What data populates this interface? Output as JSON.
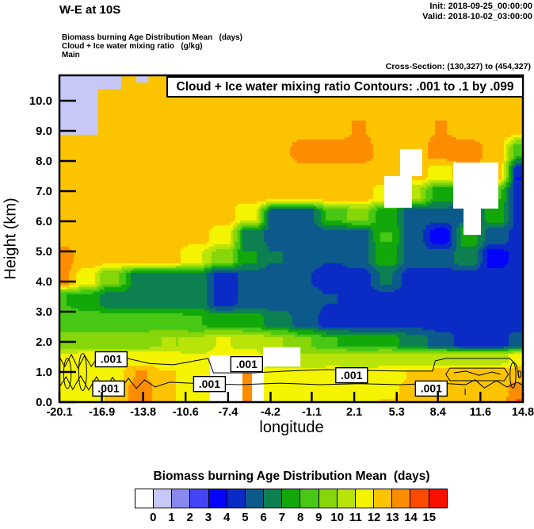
{
  "header": {
    "title": "W-E at 10S",
    "init_label": "Init: 2018-09-25_00:00:00",
    "valid_label": "Valid: 2018-10-02_03:00:00",
    "subtitle1": "Biomass burning Age Distribution Mean   (days)",
    "subtitle2": "Cloud + Ice water mixing ratio   (g/kg)",
    "subtitle3": "Main",
    "cross_section": "Cross-Section: (130,327) to (454,327)"
  },
  "plot": {
    "inner_title": "Cloud + Ice water mixing ratio Contours: .001 to .1 by .099",
    "xlabel": "longitude",
    "ylabel": "Height (km)",
    "x_tick_labels": [
      "-20.1",
      "-16.9",
      "-13.8",
      "-10.6",
      "-7.4",
      "-4.2",
      "-1.1",
      "2.1",
      "5.3",
      "8.4",
      "11.6",
      "14.8"
    ],
    "y_tick_labels": [
      "0.0",
      "1.0",
      "2.0",
      "3.0",
      "4.0",
      "5.0",
      "6.0",
      "7.0",
      "8.0",
      "9.0",
      "10.0"
    ],
    "contour_label": ".001"
  },
  "colorbar": {
    "title": "Biomass burning Age Distribution Mean  (days)",
    "tick_labels": [
      "0",
      "1",
      "2",
      "3",
      "4",
      "5",
      "6",
      "7",
      "8",
      "9",
      "10",
      "11",
      "12",
      "13",
      "14",
      "15"
    ],
    "colors": [
      "#ffffff",
      "#c8c8f8",
      "#8888ee",
      "#4444f4",
      "#0404fc",
      "#0a2cc4",
      "#0c5a8c",
      "#0c8050",
      "#12a80a",
      "#48c814",
      "#86d60a",
      "#b9e409",
      "#f4f400",
      "#fcc400",
      "#fc8c00",
      "#fc4a00",
      "#f81000"
    ]
  },
  "chart_data": {
    "type": "heatmap",
    "title": "Cloud + Ice water mixing ratio Contours: .001 to .1 by .099",
    "xlabel": "longitude",
    "ylabel": "Height (km)",
    "xlim": [
      -20.1,
      14.8
    ],
    "ylim": [
      0,
      10.84
    ],
    "x_ticks": [
      -20.1,
      -16.9,
      -13.8,
      -10.6,
      -7.4,
      -4.2,
      -1.1,
      2.1,
      5.3,
      8.4,
      11.6,
      14.8
    ],
    "y_ticks": [
      0,
      1,
      2,
      3,
      4,
      5,
      6,
      7,
      8,
      9,
      10
    ],
    "fill_variable": "Biomass burning Age Distribution Mean (days)",
    "fill_levels": [
      0,
      1,
      2,
      3,
      4,
      5,
      6,
      7,
      8,
      9,
      10,
      11,
      12,
      13,
      14,
      15
    ],
    "legend_position": "bottom",
    "grid": {
      "lons": [
        -20.1,
        -18.0,
        -16.2,
        -13.9,
        -11.9,
        -9.8,
        -7.8,
        -5.7,
        -3.7,
        -1.6,
        0.4,
        2.5,
        4.5,
        6.6,
        8.6,
        10.7,
        12.7,
        14.8
      ],
      "heights_km": [
        10.8,
        10.0,
        9.1,
        8.3,
        7.6,
        6.9,
        6.2,
        5.5,
        4.8,
        4.1,
        3.4,
        2.7,
        2.0,
        1.45,
        0.9,
        0.45,
        0.0
      ],
      "values_days": [
        [
          13.5,
          13.5,
          13.5,
          13.5,
          13.5,
          13.5,
          13.5,
          13.5,
          13.5,
          13.5,
          13.5,
          13.5,
          13.5,
          13.5,
          13.5,
          13.5,
          13.5,
          13.5
        ],
        [
          13.5,
          13.5,
          13.5,
          13.5,
          13.5,
          13.5,
          13.5,
          13.5,
          13.5,
          13.5,
          13.5,
          13.5,
          13.5,
          13.5,
          13.5,
          13.5,
          13.5,
          13.5
        ],
        [
          13.5,
          13.5,
          13.5,
          13.5,
          13.5,
          13.5,
          13.5,
          13.5,
          13.5,
          13.5,
          13.5,
          14.0,
          13.5,
          13.5,
          14.0,
          13.5,
          13.5,
          13.5
        ],
        [
          13.5,
          13.5,
          13.5,
          13.5,
          13.5,
          13.5,
          13.5,
          13.5,
          13.5,
          14.5,
          14.5,
          14.5,
          13.5,
          13.5,
          14.5,
          14.5,
          13.5,
          9.0
        ],
        [
          13.5,
          13.5,
          13.5,
          13.5,
          13.5,
          13.5,
          13.5,
          13.5,
          13.5,
          13.5,
          13.5,
          13.5,
          13.5,
          13.5,
          12.5,
          14.0,
          13.5,
          5.0
        ],
        [
          13.5,
          13.5,
          13.5,
          13.5,
          13.5,
          13.5,
          13.5,
          13.5,
          13.5,
          13.5,
          13.5,
          13.5,
          12.5,
          11.0,
          8.5,
          8.0,
          9.0,
          5.0
        ],
        [
          13.5,
          13.5,
          13.5,
          13.5,
          13.5,
          13.5,
          13.5,
          12.0,
          6.5,
          6.5,
          9.0,
          10.5,
          8.5,
          6.5,
          6.5,
          6.5,
          8.5,
          5.5
        ],
        [
          13.5,
          13.5,
          13.5,
          13.5,
          13.5,
          13.5,
          12.5,
          7.5,
          6.5,
          6.5,
          6.5,
          6.5,
          9.0,
          6.5,
          4.5,
          8.5,
          6.5,
          5.5
        ],
        [
          14.5,
          13.5,
          13.5,
          13.5,
          13.5,
          12.0,
          10.5,
          8.0,
          7.0,
          6.5,
          6.0,
          6.5,
          8.5,
          6.5,
          6.5,
          7.5,
          4.5,
          5.5
        ],
        [
          14.5,
          12.5,
          10.0,
          7.5,
          7.5,
          7.5,
          5.5,
          6.5,
          6.5,
          6.0,
          5.5,
          5.5,
          7.0,
          5.5,
          5.5,
          5.5,
          5.5,
          5.5
        ],
        [
          9.0,
          8.5,
          7.5,
          7.5,
          7.5,
          7.5,
          5.5,
          6.5,
          6.5,
          6.5,
          6.0,
          5.5,
          5.5,
          5.5,
          5.5,
          5.5,
          5.5,
          5.5
        ],
        [
          9.5,
          9.5,
          9.5,
          9.5,
          9.5,
          9.0,
          8.5,
          8.5,
          7.5,
          6.5,
          5.5,
          5.5,
          5.5,
          5.5,
          5.5,
          5.5,
          5.5,
          5.5
        ],
        [
          10.5,
          10.5,
          10.5,
          10.5,
          11.0,
          11.0,
          12.0,
          11.5,
          11.0,
          10.0,
          9.0,
          8.5,
          8.5,
          7.5,
          6.5,
          5.5,
          5.5,
          6.5
        ],
        [
          12.0,
          12.5,
          12.5,
          12.5,
          12.5,
          12.0,
          12.5,
          12.5,
          11.0,
          11.0,
          11.5,
          11.0,
          11.5,
          11.5,
          11.5,
          11.5,
          11.5,
          12.5
        ],
        [
          12.5,
          12.5,
          12.5,
          14.0,
          13.0,
          12.5,
          12.5,
          12.5,
          12.5,
          12.5,
          12.5,
          12.5,
          12.5,
          13.0,
          13.5,
          13.5,
          13.5,
          13.5
        ],
        [
          12.5,
          12.5,
          13.0,
          14.5,
          13.0,
          12.5,
          12.5,
          12.5,
          12.5,
          12.5,
          12.5,
          12.5,
          12.5,
          13.5,
          13.5,
          13.5,
          13.5,
          14.5
        ],
        [
          12.5,
          12.5,
          13.0,
          14.5,
          13.0,
          12.5,
          12.5,
          12.5,
          12.5,
          12.5,
          12.5,
          12.5,
          13.0,
          13.5,
          13.5,
          13.5,
          13.5,
          15.0
        ]
      ]
    },
    "patches": [
      {
        "name": "age-1-2-day-stratosphere-region",
        "color_index": 1,
        "pts": [
          [
            -20.1,
            10.84
          ],
          [
            -15.45,
            10.84
          ],
          [
            -15.45,
            10.39
          ],
          [
            -17.2,
            10.39
          ],
          [
            -17.2,
            8.87
          ],
          [
            -20.1,
            8.87
          ]
        ]
      },
      {
        "name": "age-1-2-day-fleck",
        "color_index": 1,
        "pts": [
          [
            -14.3,
            10.84
          ],
          [
            -13.4,
            10.84
          ],
          [
            -13.4,
            10.6
          ],
          [
            -14.3,
            10.6
          ]
        ]
      },
      {
        "name": "zero-age-cloud-patch",
        "color_index": 0,
        "pts": [
          [
            4.36,
            7.5
          ],
          [
            5.55,
            7.5
          ],
          [
            5.55,
            8.39
          ],
          [
            7.22,
            8.39
          ],
          [
            7.22,
            7.5
          ],
          [
            6.45,
            7.5
          ],
          [
            6.45,
            6.45
          ],
          [
            4.36,
            6.45
          ]
        ]
      },
      {
        "name": "zero-age-cloud-patch",
        "color_index": 0,
        "pts": [
          [
            9.55,
            6.42
          ],
          [
            9.55,
            7.95
          ],
          [
            12.95,
            7.95
          ],
          [
            12.95,
            6.42
          ],
          [
            11.64,
            6.42
          ],
          [
            11.64,
            5.55
          ],
          [
            10.33,
            5.55
          ],
          [
            10.33,
            6.42
          ]
        ]
      },
      {
        "name": "zero-age-surface-patch",
        "color_index": 0,
        "pts": [
          [
            -8.77,
            1.55
          ],
          [
            -4.71,
            1.55
          ],
          [
            -4.71,
            0.0
          ],
          [
            -8.77,
            0.0
          ]
        ]
      },
      {
        "name": "zero-age-surface-patch",
        "color_index": 0,
        "pts": [
          [
            -4.77,
            1.82
          ],
          [
            -1.95,
            1.82
          ],
          [
            -1.95,
            1.18
          ],
          [
            -4.77,
            1.18
          ]
        ]
      },
      {
        "name": "orange-surface-column",
        "color_index": 14,
        "pts": [
          [
            -6.32,
            0.97
          ],
          [
            -5.6,
            0.97
          ],
          [
            -5.6,
            0.0
          ],
          [
            -6.32,
            0.0
          ]
        ]
      }
    ],
    "contours": {
      "variable": "Cloud + Ice water mixing ratio (g/kg)",
      "levels": [
        0.001,
        0.1
      ],
      "label": ".001",
      "lines": [
        {
          "pts": [
            [
              -20.1,
              1.5
            ],
            [
              -19.7,
              1.18
            ],
            [
              -19.2,
              1.58
            ],
            [
              -18.7,
              1.13
            ],
            [
              -18.2,
              1.55
            ],
            [
              -17.7,
              1.18
            ],
            [
              -17.2,
              1.5
            ],
            [
              -15.0,
              1.45
            ],
            [
              -13.3,
              1.28
            ],
            [
              -11.5,
              1.24
            ],
            [
              -8.9,
              1.45
            ],
            [
              -8.5,
              0.97
            ],
            [
              -5.5,
              0.97
            ],
            [
              -3.0,
              1.03
            ],
            [
              0.0,
              1.08
            ],
            [
              3.0,
              1.05
            ],
            [
              6.0,
              1.03
            ],
            [
              8.0,
              1.03
            ],
            [
              8.2,
              1.37
            ],
            [
              9.0,
              1.45
            ],
            [
              12.0,
              1.45
            ],
            [
              13.8,
              1.45
            ],
            [
              14.3,
              1.24
            ],
            [
              14.5,
              0.84
            ]
          ]
        },
        {
          "pts": [
            [
              -20.1,
              0.5
            ],
            [
              -19.6,
              0.84
            ],
            [
              -19.1,
              0.42
            ],
            [
              -18.5,
              0.87
            ],
            [
              -17.9,
              0.4
            ],
            [
              -17.3,
              0.84
            ],
            [
              -16.7,
              0.4
            ],
            [
              -16.1,
              0.82
            ],
            [
              -15.5,
              0.45
            ],
            [
              -14.9,
              0.79
            ],
            [
              -14.3,
              0.45
            ],
            [
              -13.7,
              0.74
            ],
            [
              -12.9,
              0.5
            ],
            [
              -11.8,
              0.66
            ],
            [
              -9.5,
              0.61
            ],
            [
              -6.5,
              0.58
            ],
            [
              -3.5,
              0.63
            ],
            [
              -0.5,
              0.58
            ],
            [
              2.5,
              0.61
            ],
            [
              5.5,
              0.58
            ],
            [
              8.5,
              0.63
            ],
            [
              10.5,
              0.58
            ],
            [
              11.2,
              0.74
            ],
            [
              11.9,
              0.47
            ],
            [
              12.8,
              0.71
            ],
            [
              13.6,
              0.5
            ],
            [
              14.4,
              0.66
            ],
            [
              14.8,
              0.55
            ]
          ]
        },
        {
          "pts": [
            [
              9.3,
              1.13
            ],
            [
              13.4,
              1.13
            ],
            [
              13.7,
              0.92
            ],
            [
              13.4,
              0.71
            ],
            [
              9.3,
              0.71
            ],
            [
              9.0,
              0.92
            ],
            [
              9.3,
              1.13
            ]
          ]
        },
        {
          "pts": [
            [
              9.6,
              0.97
            ],
            [
              10.5,
              1.03
            ],
            [
              11.5,
              0.89
            ],
            [
              12.5,
              1.0
            ],
            [
              13.1,
              0.92
            ]
          ]
        },
        {
          "pts": [
            [
              10.45,
              0.45
            ],
            [
              10.45,
              0.24
            ]
          ]
        }
      ],
      "ellipses": [
        {
          "cx": 14.05,
          "cy": 0.89,
          "rx": 0.22,
          "ry": 0.42
        },
        {
          "cx": 14.55,
          "cy": 0.92,
          "rx": 0.1,
          "ry": 0.12
        },
        {
          "cx": -19.5,
          "cy": 0.95,
          "rx": 0.28,
          "ry": 0.5
        },
        {
          "cx": -18.35,
          "cy": 1.0,
          "rx": 0.3,
          "ry": 0.62
        }
      ],
      "label_positions": [
        [
          -16.2,
          1.42
        ],
        [
          -16.4,
          0.45
        ],
        [
          -8.8,
          0.6
        ],
        [
          -6.0,
          1.26
        ],
        [
          1.9,
          0.89
        ],
        [
          7.9,
          0.45
        ]
      ]
    }
  }
}
